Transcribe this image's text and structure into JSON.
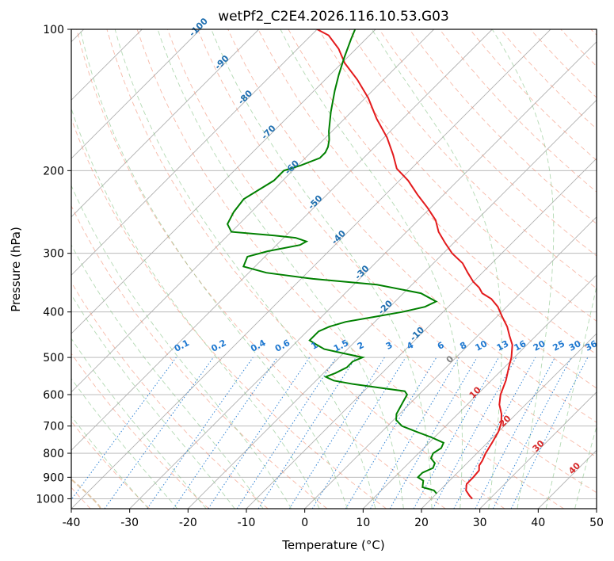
{
  "chart_data": {
    "type": "line",
    "subtype": "skew-T log-p diagram",
    "title": "wetPf2_C2E4.2026.116.10.53.G03",
    "xlabel": "Temperature (°C)",
    "ylabel": "Pressure (hPa)",
    "xlim": [
      -40,
      50
    ],
    "ylim": [
      1050,
      100
    ],
    "yscale": "log",
    "xticks": [
      -40,
      -30,
      -20,
      -10,
      0,
      10,
      20,
      30,
      40,
      50
    ],
    "yticks": [
      100,
      200,
      300,
      400,
      500,
      600,
      700,
      800,
      900,
      1000
    ],
    "grid": true,
    "series": [
      {
        "color": "#e31a1c",
        "points": [
          [
            1000,
            27
          ],
          [
            985,
            26
          ],
          [
            960,
            24.5
          ],
          [
            930,
            23.5
          ],
          [
            900,
            23.5
          ],
          [
            870,
            23.3
          ],
          [
            850,
            22.5
          ],
          [
            830,
            22.2
          ],
          [
            800,
            21.5
          ],
          [
            760,
            20.8
          ],
          [
            720,
            20
          ],
          [
            690,
            19
          ],
          [
            660,
            17.5
          ],
          [
            630,
            15.5
          ],
          [
            600,
            14
          ],
          [
            560,
            12.5
          ],
          [
            520,
            10.5
          ],
          [
            500,
            9.5
          ],
          [
            470,
            7.5
          ],
          [
            450,
            5.5
          ],
          [
            430,
            3.5
          ],
          [
            410,
            1
          ],
          [
            390,
            -1.5
          ],
          [
            375,
            -4
          ],
          [
            365,
            -6.5
          ],
          [
            355,
            -8
          ],
          [
            345,
            -10
          ],
          [
            330,
            -12.5
          ],
          [
            315,
            -15
          ],
          [
            300,
            -18.5
          ],
          [
            285,
            -21.5
          ],
          [
            270,
            -24.5
          ],
          [
            255,
            -27
          ],
          [
            240,
            -30.5
          ],
          [
            225,
            -34.5
          ],
          [
            210,
            -38.5
          ],
          [
            198,
            -42.5
          ],
          [
            185,
            -45.5
          ],
          [
            170,
            -49.5
          ],
          [
            155,
            -54.5
          ],
          [
            140,
            -59.5
          ],
          [
            128,
            -64.5
          ],
          [
            118,
            -69.5
          ],
          [
            110,
            -73
          ],
          [
            103,
            -77
          ],
          [
            100,
            -80
          ]
        ]
      },
      {
        "color": "#008000",
        "points": [
          [
            975,
            20
          ],
          [
            960,
            19
          ],
          [
            945,
            16.5
          ],
          [
            930,
            16
          ],
          [
            915,
            15.5
          ],
          [
            900,
            14
          ],
          [
            880,
            14
          ],
          [
            860,
            15
          ],
          [
            840,
            14.5
          ],
          [
            820,
            13
          ],
          [
            800,
            12.5
          ],
          [
            780,
            13
          ],
          [
            760,
            12.5
          ],
          [
            740,
            9.5
          ],
          [
            720,
            6
          ],
          [
            700,
            2.5
          ],
          [
            680,
            0.5
          ],
          [
            660,
            -0.5
          ],
          [
            640,
            -1
          ],
          [
            620,
            -1.5
          ],
          [
            600,
            -2
          ],
          [
            590,
            -3
          ],
          [
            580,
            -8
          ],
          [
            570,
            -13
          ],
          [
            560,
            -17
          ],
          [
            550,
            -19
          ],
          [
            540,
            -18
          ],
          [
            525,
            -17
          ],
          [
            510,
            -17
          ],
          [
            500,
            -16
          ],
          [
            490,
            -20
          ],
          [
            480,
            -24
          ],
          [
            470,
            -26
          ],
          [
            460,
            -28
          ],
          [
            440,
            -28
          ],
          [
            430,
            -27
          ],
          [
            420,
            -25
          ],
          [
            410,
            -21
          ],
          [
            400,
            -17
          ],
          [
            390,
            -14
          ],
          [
            380,
            -13
          ],
          [
            365,
            -17
          ],
          [
            350,
            -26
          ],
          [
            340,
            -38
          ],
          [
            330,
            -47
          ],
          [
            320,
            -52
          ],
          [
            305,
            -53
          ],
          [
            297,
            -50.5
          ],
          [
            288,
            -46
          ],
          [
            283,
            -45.5
          ],
          [
            278,
            -48
          ],
          [
            275,
            -52
          ],
          [
            270,
            -60
          ],
          [
            260,
            -62
          ],
          [
            245,
            -63
          ],
          [
            230,
            -63.5
          ],
          [
            210,
            -61.5
          ],
          [
            200,
            -61.5
          ],
          [
            195,
            -59.5
          ],
          [
            188,
            -57.5
          ],
          [
            183,
            -57.5
          ],
          [
            178,
            -58
          ],
          [
            172,
            -59
          ],
          [
            165,
            -60.5
          ],
          [
            150,
            -63.5
          ],
          [
            135,
            -66.5
          ],
          [
            125,
            -68.5
          ],
          [
            115,
            -70.5
          ],
          [
            105,
            -72.5
          ],
          [
            100,
            -73.5
          ]
        ]
      }
    ],
    "dry_adiabat_labels": [
      "-100",
      "-90",
      "-80",
      "-70",
      "-60",
      "-50",
      "-40",
      "-30",
      "-20",
      "-10",
      "0",
      "10",
      "20",
      "30",
      "40"
    ],
    "mixing_ratio_labels": [
      "0.1",
      "0.2",
      "0.4",
      "0.6",
      "1",
      "1.5",
      "2",
      "3",
      "4",
      "6",
      "8",
      "10",
      "13",
      "16",
      "20",
      "25",
      "30",
      "36"
    ],
    "colors": {
      "temperature": "#e31a1c",
      "dewpoint": "#008000",
      "isotherm": "#b0b0b0",
      "isobar": "#b0b0b0",
      "dry_adiabat": "#f08060",
      "moist_adiabat": "#80c080",
      "mixing_ratio": "#1e78d0",
      "lcl_curve": "#d8b890",
      "label_cold": "#1f6fb0",
      "label_warm": "#d62728",
      "label_zero": "#808080"
    }
  }
}
